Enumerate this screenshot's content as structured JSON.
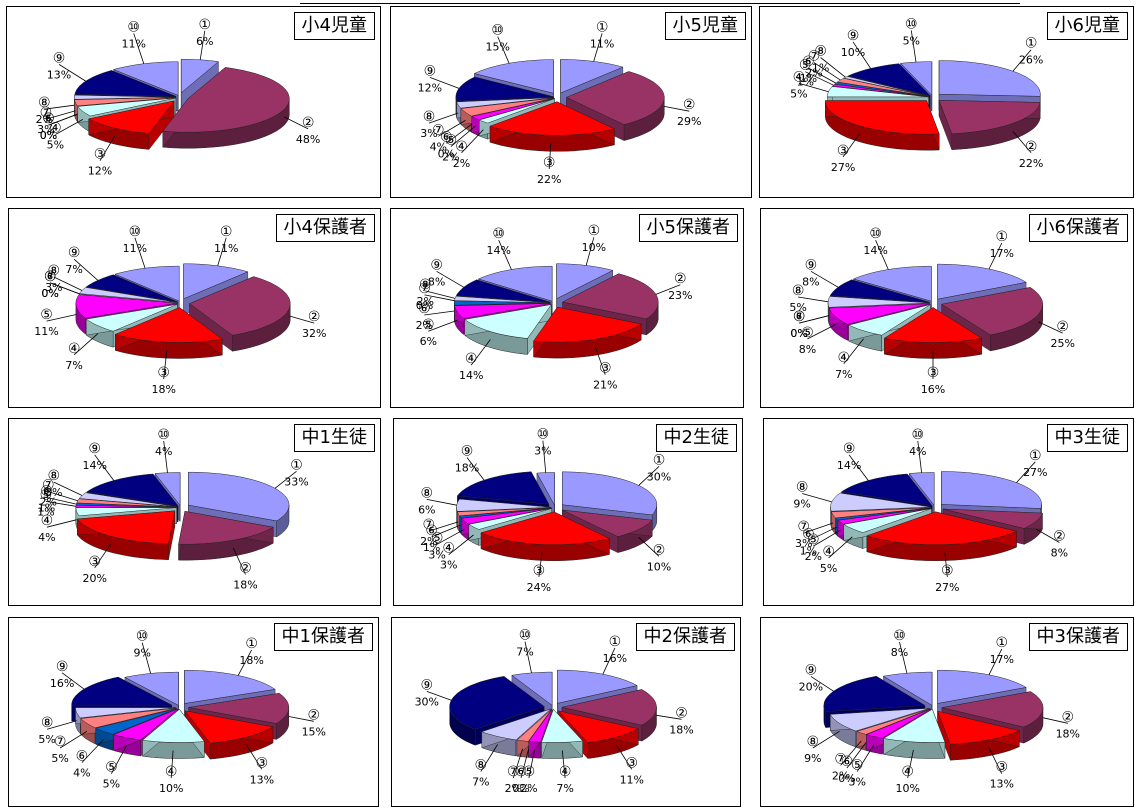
{
  "colors": [
    "#9999ff",
    "#993366",
    "#ff0000",
    "#ccffff",
    "#ff00ff",
    "#0066cc",
    "#ff8080",
    "#ccccff",
    "#000080",
    "#9999ff"
  ],
  "charts": [
    {
      "title": "小4児童",
      "chart_data": {
        "type": "pie",
        "categories": [
          "①",
          "②",
          "③",
          "④",
          "⑤",
          "⑥",
          "⑦",
          "⑧",
          "⑨",
          "⑩"
        ],
        "values": [
          6,
          48,
          12,
          5,
          0,
          0,
          3,
          2,
          13,
          11
        ],
        "labels": [
          "6%",
          "48%",
          "12%",
          "5%",
          "0%",
          "0%",
          "3%",
          "2%",
          "13%",
          "11%"
        ]
      }
    },
    {
      "title": "小5児童",
      "chart_data": {
        "type": "pie",
        "categories": [
          "①",
          "②",
          "③",
          "④",
          "⑤",
          "⑥",
          "⑦",
          "⑧",
          "⑨",
          "⑩"
        ],
        "values": [
          11,
          29,
          22,
          2,
          2,
          0,
          4,
          3,
          12,
          15
        ],
        "labels": [
          "11%",
          "29%",
          "22%",
          "2%",
          "2%",
          "0%",
          "4%",
          "3%",
          "12%",
          "15%"
        ]
      }
    },
    {
      "title": "小6児童",
      "chart_data": {
        "type": "pie",
        "categories": [
          "①",
          "②",
          "③",
          "④",
          "⑤",
          "⑥",
          "⑦",
          "⑧",
          "⑨",
          "⑩"
        ],
        "values": [
          26,
          22,
          27,
          5,
          1,
          1,
          2,
          1,
          10,
          5
        ],
        "labels": [
          "26%",
          "22%",
          "27%",
          "5%",
          "1%",
          "1%",
          "2%",
          "1%",
          "10%",
          "5%"
        ]
      }
    },
    {
      "title": "小4保護者",
      "chart_data": {
        "type": "pie",
        "categories": [
          "①",
          "②",
          "③",
          "④",
          "⑤",
          "⑥",
          "⑦",
          "⑧",
          "⑨",
          "⑩"
        ],
        "values": [
          11,
          32,
          18,
          7,
          11,
          0,
          0,
          3,
          7,
          11
        ],
        "labels": [
          "11%",
          "32%",
          "18%",
          "7%",
          "11%",
          "0%",
          "0%",
          "3%",
          "7%",
          "11%"
        ]
      }
    },
    {
      "title": "小5保護者",
      "chart_data": {
        "type": "pie",
        "categories": [
          "①",
          "②",
          "③",
          "④",
          "⑤",
          "⑥",
          "⑦",
          "⑧",
          "⑨",
          "⑩"
        ],
        "values": [
          10,
          23,
          21,
          14,
          6,
          2,
          0,
          2,
          8,
          14
        ],
        "labels": [
          "10%",
          "23%",
          "21%",
          "14%",
          "6%",
          "2%",
          "0%",
          "2%",
          "8%",
          "14%"
        ]
      }
    },
    {
      "title": "小6保護者",
      "chart_data": {
        "type": "pie",
        "categories": [
          "①",
          "②",
          "③",
          "④",
          "⑤",
          "⑥",
          "⑦",
          "⑧",
          "⑨",
          "⑩"
        ],
        "values": [
          17,
          25,
          16,
          7,
          8,
          0,
          0,
          5,
          8,
          14
        ],
        "labels": [
          "17%",
          "25%",
          "16%",
          "7%",
          "8%",
          "0%",
          "0%",
          "5%",
          "8%",
          "14%"
        ]
      }
    },
    {
      "title": "中1生徒",
      "chart_data": {
        "type": "pie",
        "categories": [
          "①",
          "②",
          "③",
          "④",
          "⑤",
          "⑥",
          "⑦",
          "⑧",
          "⑨",
          "⑩"
        ],
        "values": [
          33,
          18,
          20,
          4,
          1,
          1,
          2,
          3,
          14,
          4
        ],
        "labels": [
          "33%",
          "18%",
          "20%",
          "4%",
          "1%",
          "1%",
          "2%",
          "3%",
          "14%",
          "4%"
        ]
      }
    },
    {
      "title": "中2生徒",
      "chart_data": {
        "type": "pie",
        "categories": [
          "①",
          "②",
          "③",
          "④",
          "⑤",
          "⑥",
          "⑦",
          "⑧",
          "⑨",
          "⑩"
        ],
        "values": [
          30,
          10,
          24,
          3,
          3,
          1,
          2,
          6,
          18,
          3
        ],
        "labels": [
          "30%",
          "10%",
          "24%",
          "3%",
          "3%",
          "1%",
          "2%",
          "6%",
          "18%",
          "3%"
        ]
      }
    },
    {
      "title": "中3生徒",
      "chart_data": {
        "type": "pie",
        "categories": [
          "①",
          "②",
          "③",
          "④",
          "⑤",
          "⑥",
          "⑦",
          "⑧",
          "⑨",
          "⑩"
        ],
        "values": [
          27,
          8,
          27,
          5,
          2,
          1,
          3,
          9,
          14,
          4
        ],
        "labels": [
          "27%",
          "8%",
          "27%",
          "5%",
          "2%",
          "1%",
          "3%",
          "9%",
          "14%",
          "4%"
        ]
      }
    },
    {
      "title": "中1保護者",
      "chart_data": {
        "type": "pie",
        "categories": [
          "①",
          "②",
          "③",
          "④",
          "⑤",
          "⑥",
          "⑦",
          "⑧",
          "⑨",
          "⑩"
        ],
        "values": [
          18,
          15,
          13,
          10,
          5,
          4,
          5,
          5,
          16,
          9
        ],
        "labels": [
          "18%",
          "15%",
          "13%",
          "10%",
          "5%",
          "4%",
          "5%",
          "5%",
          "16%",
          "9%"
        ]
      }
    },
    {
      "title": "中2保護者",
      "chart_data": {
        "type": "pie",
        "categories": [
          "①",
          "②",
          "③",
          "④",
          "⑤",
          "⑥",
          "⑦",
          "⑧",
          "⑨",
          "⑩"
        ],
        "values": [
          16,
          18,
          11,
          7,
          2,
          0,
          2,
          7,
          30,
          7
        ],
        "labels": [
          "16%",
          "18%",
          "11%",
          "7%",
          "2%",
          "0%",
          "2%",
          "7%",
          "30%",
          "7%"
        ]
      }
    },
    {
      "title": "中3保護者",
      "chart_data": {
        "type": "pie",
        "categories": [
          "①",
          "②",
          "③",
          "④",
          "⑤",
          "⑥",
          "⑦",
          "⑧",
          "⑨",
          "⑩"
        ],
        "values": [
          17,
          18,
          13,
          10,
          3,
          0,
          2,
          9,
          20,
          8
        ],
        "labels": [
          "17%",
          "18%",
          "13%",
          "10%",
          "3%",
          "0%",
          "2%",
          "9%",
          "20%",
          "8%"
        ]
      }
    }
  ]
}
